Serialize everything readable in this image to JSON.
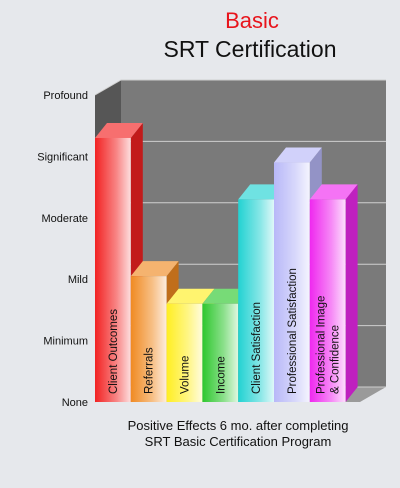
{
  "colors": {
    "background": "#e6e8ec",
    "title_red": "#e8141c",
    "back_wall": "#7a7a7a",
    "floor": "#9a9a9a",
    "left_wall": "#565656",
    "grid_line": "#cfcfcf",
    "text": "#111111"
  },
  "chart_data": {
    "type": "bar",
    "title": "Basic",
    "subtitle": "SRT Certification",
    "xlabel": "Positive Effects 6 mo. after completing SRT Basic Certification Program",
    "xlabel_lines": [
      "Positive Effects 6 mo. after completing",
      "SRT Basic Certification Program"
    ],
    "ylabel": "",
    "y_tick_labels": [
      "None",
      "Minimum",
      "Mild",
      "Moderate",
      "Significant",
      "Profound"
    ],
    "ylim": [
      0,
      5
    ],
    "grid": true,
    "three_d": true,
    "categories": [
      "Client Outcomes",
      "Referrals",
      "Volume",
      "Income",
      "Client Satisfaction",
      "Professional Satisfaction",
      "Professional Image & Confidence"
    ],
    "category_lines": [
      [
        "Client Outcomes"
      ],
      [
        "Referrals"
      ],
      [
        "Volume"
      ],
      [
        "Income"
      ],
      [
        "Client Satisfaction"
      ],
      [
        "Professional Satisfaction"
      ],
      [
        "Professional Image",
        "& Confidence"
      ]
    ],
    "values": [
      4.3,
      2.05,
      1.6,
      1.6,
      3.3,
      3.9,
      3.3
    ],
    "bar_colors": [
      "#f22222",
      "#f08a22",
      "#ffee22",
      "#2ec72e",
      "#22d2d2",
      "#b8b8f8",
      "#ef28ef"
    ]
  }
}
